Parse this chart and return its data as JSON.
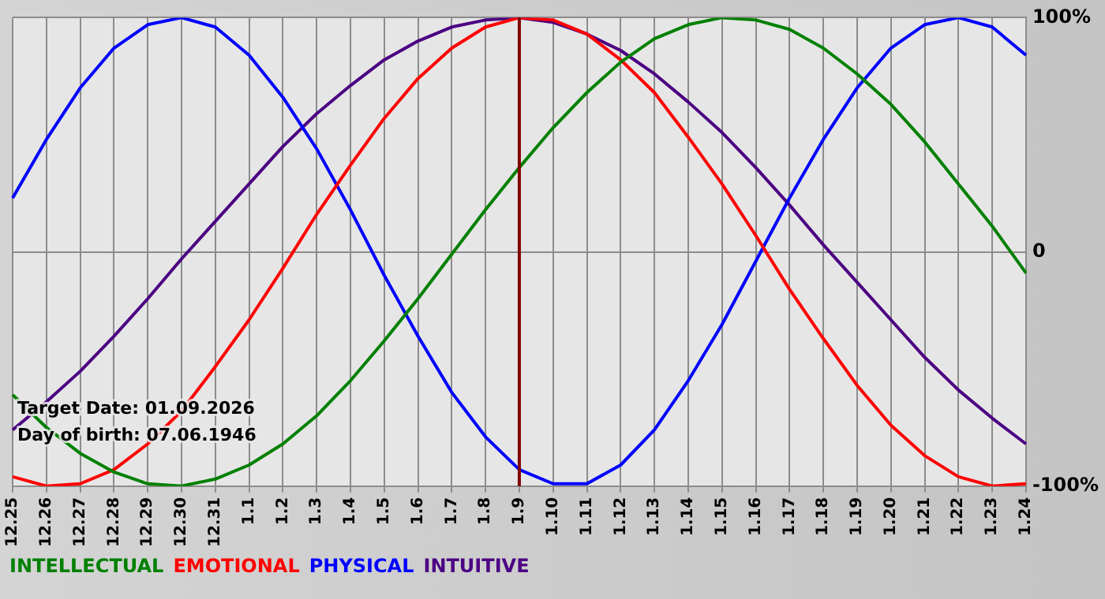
{
  "chart_data": {
    "type": "line",
    "categories": [
      "12.25",
      "12.26",
      "12.27",
      "12.28",
      "12.29",
      "12.30",
      "12.31",
      "1.1",
      "1.2",
      "1.3",
      "1.4",
      "1.5",
      "1.6",
      "1.7",
      "1.8",
      "1.9",
      "1.10",
      "1.11",
      "1.12",
      "1.13",
      "1.14",
      "1.15",
      "1.16",
      "1.17",
      "1.18",
      "1.19",
      "1.20",
      "1.21",
      "1.22",
      "1.23",
      "1.24"
    ],
    "series": [
      {
        "name": "INTELLECTUAL",
        "color": "#008000",
        "values": [
          -61,
          -75,
          -86,
          -94,
          -99,
          -100,
          -97,
          -91,
          -82,
          -70,
          -55,
          -38,
          -20,
          -1,
          18,
          36,
          53,
          68,
          81,
          91,
          97,
          100,
          99,
          95,
          87,
          76,
          63,
          47,
          29,
          11,
          -9
        ]
      },
      {
        "name": "EMOTIONAL",
        "color": "#ff0000",
        "values": [
          -96,
          -100,
          -99,
          -93,
          -82,
          -68,
          -49,
          -29,
          -7,
          16,
          37,
          57,
          74,
          87,
          96,
          100,
          99,
          93,
          82,
          68,
          49,
          29,
          7,
          -16,
          -37,
          -57,
          -74,
          -87,
          -96,
          -100,
          -99
        ]
      },
      {
        "name": "PHYSICAL",
        "color": "#0000ff",
        "values": [
          23,
          48,
          70,
          87,
          97,
          100,
          96,
          84,
          66,
          44,
          18,
          -10,
          -36,
          -60,
          -79,
          -93,
          -99,
          -99,
          -91,
          -76,
          -55,
          -31,
          -4,
          23,
          48,
          70,
          87,
          97,
          100,
          96,
          84
        ]
      },
      {
        "name": "INTUITIVE",
        "color": "#4b0082",
        "values": [
          -76,
          -64,
          -51,
          -36,
          -20,
          -3,
          13,
          29,
          45,
          59,
          71,
          82,
          90,
          96,
          99,
          100,
          98,
          93,
          86,
          76,
          64,
          51,
          36,
          20,
          3,
          -13,
          -29,
          -45,
          -59,
          -71,
          -82
        ]
      }
    ],
    "ylim": [
      -100,
      100
    ],
    "yticks": [
      {
        "value": 100,
        "label": "100%"
      },
      0,
      {
        "value": -100,
        "label": "-100%"
      }
    ],
    "grid": true,
    "legend": "bottom",
    "ref_lines": [
      {
        "axis": "x",
        "value": "1.9",
        "color": "#800000"
      }
    ],
    "annotations": [
      "Target Date: 01.09.2026",
      "Day of birth: 07.06.1946"
    ]
  }
}
